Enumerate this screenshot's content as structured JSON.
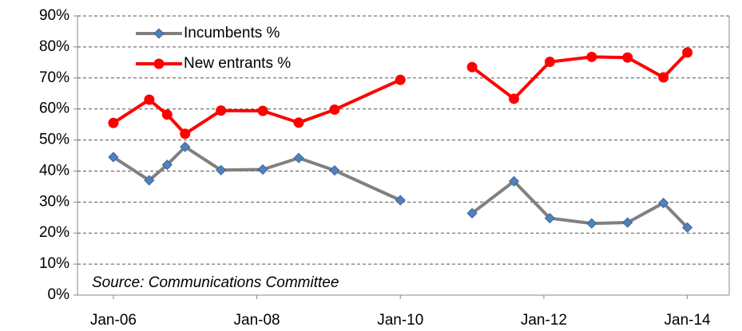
{
  "chart_data": {
    "type": "line",
    "annotation": "Source: Communications Committee",
    "x": [
      "2006-01",
      "2006-07",
      "2006-10",
      "2007-01",
      "2007-07",
      "2008-02",
      "2008-08",
      "2009-02",
      "2010-01",
      "2010-07",
      "2011-01",
      "2011-08",
      "2012-02",
      "2012-09",
      "2013-03",
      "2013-09",
      "2014-01"
    ],
    "series": [
      {
        "name": "Incumbents %",
        "color": "#808080",
        "marker": "diamond",
        "marker_color": "#4f81bd",
        "values": [
          44.5,
          37,
          42,
          47.8,
          40.3,
          40.5,
          44.2,
          40.2,
          30.6,
          null,
          26.4,
          36.7,
          24.8,
          23.1,
          23.4,
          29.7,
          21.8
        ]
      },
      {
        "name": "New entrants %",
        "color": "#ff0000",
        "marker": "circle",
        "marker_color": "#ff0000",
        "values": [
          55.5,
          63,
          58.2,
          52,
          59.5,
          59.4,
          55.6,
          59.8,
          69.4,
          null,
          73.5,
          63.3,
          75.2,
          76.8,
          76.6,
          70.2,
          78.2
        ]
      }
    ],
    "xlim": [
      "2005-07",
      "2014-08"
    ],
    "xticks": [
      {
        "value": "2006-01",
        "label": "Jan-06"
      },
      {
        "value": "2008-01",
        "label": "Jan-08"
      },
      {
        "value": "2010-01",
        "label": "Jan-10"
      },
      {
        "value": "2012-01",
        "label": "Jan-12"
      },
      {
        "value": "2014-01",
        "label": "Jan-14"
      }
    ],
    "ylim": [
      0,
      90
    ],
    "yticks": [
      {
        "value": 0,
        "label": "0%"
      },
      {
        "value": 10,
        "label": "10%"
      },
      {
        "value": 20,
        "label": "20%"
      },
      {
        "value": 30,
        "label": "30%"
      },
      {
        "value": 40,
        "label": "40%"
      },
      {
        "value": 50,
        "label": "50%"
      },
      {
        "value": 60,
        "label": "60%"
      },
      {
        "value": 70,
        "label": "70%"
      },
      {
        "value": 80,
        "label": "80%"
      },
      {
        "value": 90,
        "label": "90%"
      }
    ],
    "grid": true,
    "legend": "upper left"
  }
}
